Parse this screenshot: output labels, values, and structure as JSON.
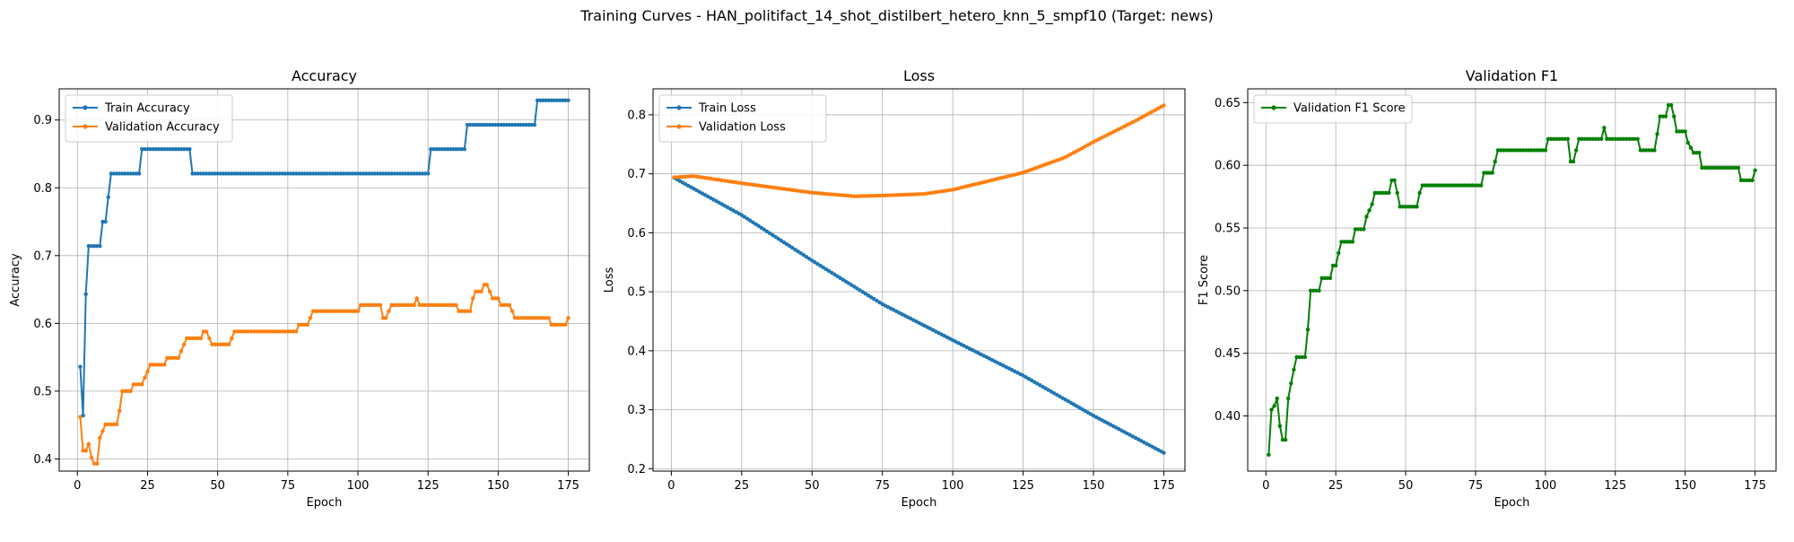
{
  "figure": {
    "suptitle": "Training Curves - HAN_politifact_14_shot_distilbert_hetero_knn_5_smpf10 (Target: news)"
  },
  "colors": {
    "train": "#1f77b4",
    "val": "#ff7f0e",
    "f1": "#008000"
  },
  "chart_data": [
    {
      "type": "line",
      "title": "Accuracy",
      "xlabel": "Epoch",
      "ylabel": "Accuracy",
      "xlim": [
        -6.5,
        182.5
      ],
      "ylim": [
        0.382,
        0.946
      ],
      "xticks": [
        0,
        25,
        50,
        75,
        100,
        125,
        150,
        175
      ],
      "yticks": [
        0.4,
        0.5,
        0.6,
        0.7,
        0.8,
        0.9
      ],
      "ytick_labels": [
        "0.4",
        "0.5",
        "0.6",
        "0.7",
        "0.8",
        "0.9"
      ],
      "grid": true,
      "legend": "upper-left",
      "series": [
        {
          "name": "Train Accuracy",
          "color": "#1f77b4",
          "points": [
            [
              1,
              0.536
            ],
            [
              2,
              0.464
            ],
            [
              3,
              0.643
            ],
            [
              4,
              0.714
            ],
            [
              8,
              0.714
            ],
            [
              9,
              0.75
            ],
            [
              10,
              0.75
            ],
            [
              11,
              0.786
            ],
            [
              12,
              0.821
            ],
            [
              22,
              0.821
            ],
            [
              23,
              0.857
            ],
            [
              40,
              0.857
            ],
            [
              41,
              0.821
            ],
            [
              125,
              0.821
            ],
            [
              126,
              0.857
            ],
            [
              138,
              0.857
            ],
            [
              139,
              0.893
            ],
            [
              163,
              0.893
            ],
            [
              164,
              0.929
            ],
            [
              175,
              0.929
            ]
          ]
        },
        {
          "name": "Validation Accuracy",
          "color": "#ff7f0e",
          "points": [
            [
              1,
              0.462
            ],
            [
              2,
              0.412
            ],
            [
              3,
              0.412
            ],
            [
              4,
              0.422
            ],
            [
              5,
              0.402
            ],
            [
              6,
              0.393
            ],
            [
              7,
              0.393
            ],
            [
              8,
              0.431
            ],
            [
              9,
              0.441
            ],
            [
              10,
              0.451
            ],
            [
              14,
              0.451
            ],
            [
              15,
              0.471
            ],
            [
              16,
              0.5
            ],
            [
              19,
              0.5
            ],
            [
              20,
              0.51
            ],
            [
              23,
              0.51
            ],
            [
              24,
              0.52
            ],
            [
              25,
              0.529
            ],
            [
              26,
              0.539
            ],
            [
              31,
              0.539
            ],
            [
              32,
              0.549
            ],
            [
              36,
              0.549
            ],
            [
              37,
              0.559
            ],
            [
              38,
              0.569
            ],
            [
              39,
              0.578
            ],
            [
              44,
              0.578
            ],
            [
              45,
              0.588
            ],
            [
              46,
              0.588
            ],
            [
              47,
              0.578
            ],
            [
              48,
              0.569
            ],
            [
              54,
              0.569
            ],
            [
              55,
              0.578
            ],
            [
              56,
              0.588
            ],
            [
              78,
              0.588
            ],
            [
              79,
              0.598
            ],
            [
              82,
              0.598
            ],
            [
              83,
              0.608
            ],
            [
              84,
              0.618
            ],
            [
              100,
              0.618
            ],
            [
              101,
              0.627
            ],
            [
              108,
              0.627
            ],
            [
              109,
              0.608
            ],
            [
              110,
              0.608
            ],
            [
              111,
              0.618
            ],
            [
              112,
              0.627
            ],
            [
              120,
              0.627
            ],
            [
              121,
              0.637
            ],
            [
              122,
              0.627
            ],
            [
              135,
              0.627
            ],
            [
              136,
              0.618
            ],
            [
              140,
              0.618
            ],
            [
              141,
              0.637
            ],
            [
              142,
              0.647
            ],
            [
              144,
              0.647
            ],
            [
              145,
              0.657
            ],
            [
              146,
              0.657
            ],
            [
              147,
              0.647
            ],
            [
              148,
              0.637
            ],
            [
              150,
              0.637
            ],
            [
              151,
              0.627
            ],
            [
              154,
              0.627
            ],
            [
              155,
              0.618
            ],
            [
              156,
              0.608
            ],
            [
              168,
              0.608
            ],
            [
              169,
              0.598
            ],
            [
              174,
              0.598
            ],
            [
              175,
              0.608
            ]
          ]
        }
      ]
    },
    {
      "type": "line",
      "title": "Loss",
      "xlabel": "Epoch",
      "ylabel": "Loss",
      "xlim": [
        -6.5,
        182.5
      ],
      "ylim": [
        0.196,
        0.844
      ],
      "xticks": [
        0,
        25,
        50,
        75,
        100,
        125,
        150,
        175
      ],
      "yticks": [
        0.2,
        0.3,
        0.4,
        0.5,
        0.6,
        0.7,
        0.8
      ],
      "ytick_labels": [
        "0.2",
        "0.3",
        "0.4",
        "0.5",
        "0.6",
        "0.7",
        "0.8"
      ],
      "grid": true,
      "legend": "upper-left",
      "series": [
        {
          "name": "Train Loss",
          "color": "#1f77b4",
          "points": [
            [
              1,
              0.693
            ],
            [
              25,
              0.63
            ],
            [
              50,
              0.553
            ],
            [
              75,
              0.479
            ],
            [
              100,
              0.418
            ],
            [
              125,
              0.358
            ],
            [
              150,
              0.29
            ],
            [
              175,
              0.227
            ]
          ]
        },
        {
          "name": "Validation Loss",
          "color": "#ff7f0e",
          "points": [
            [
              1,
              0.694
            ],
            [
              8,
              0.696
            ],
            [
              25,
              0.684
            ],
            [
              50,
              0.668
            ],
            [
              65,
              0.662
            ],
            [
              75,
              0.663
            ],
            [
              90,
              0.666
            ],
            [
              100,
              0.673
            ],
            [
              125,
              0.702
            ],
            [
              140,
              0.728
            ],
            [
              150,
              0.754
            ],
            [
              165,
              0.79
            ],
            [
              175,
              0.816
            ]
          ]
        }
      ]
    },
    {
      "type": "line",
      "title": "Validation F1",
      "xlabel": "Epoch",
      "ylabel": "F1 Score",
      "xlim": [
        -6.5,
        182.5
      ],
      "ylim": [
        0.356,
        0.661
      ],
      "xticks": [
        0,
        25,
        50,
        75,
        100,
        125,
        150,
        175
      ],
      "yticks": [
        0.4,
        0.45,
        0.5,
        0.55,
        0.6,
        0.65
      ],
      "ytick_labels": [
        "0.40",
        "0.45",
        "0.50",
        "0.55",
        "0.60",
        "0.65"
      ],
      "grid": true,
      "legend": "upper-left",
      "series": [
        {
          "name": "Validation F1 Score",
          "color": "#008000",
          "points": [
            [
              1,
              0.369
            ],
            [
              2,
              0.405
            ],
            [
              3,
              0.408
            ],
            [
              4,
              0.414
            ],
            [
              5,
              0.392
            ],
            [
              6,
              0.381
            ],
            [
              7,
              0.381
            ],
            [
              8,
              0.414
            ],
            [
              9,
              0.426
            ],
            [
              10,
              0.437
            ],
            [
              11,
              0.447
            ],
            [
              14,
              0.447
            ],
            [
              15,
              0.469
            ],
            [
              16,
              0.5
            ],
            [
              19,
              0.5
            ],
            [
              20,
              0.51
            ],
            [
              23,
              0.51
            ],
            [
              24,
              0.52
            ],
            [
              25,
              0.52
            ],
            [
              26,
              0.53
            ],
            [
              27,
              0.539
            ],
            [
              31,
              0.539
            ],
            [
              32,
              0.549
            ],
            [
              35,
              0.549
            ],
            [
              36,
              0.559
            ],
            [
              38,
              0.569
            ],
            [
              39,
              0.578
            ],
            [
              44,
              0.578
            ],
            [
              45,
              0.588
            ],
            [
              46,
              0.588
            ],
            [
              47,
              0.578
            ],
            [
              48,
              0.567
            ],
            [
              54,
              0.567
            ],
            [
              55,
              0.578
            ],
            [
              56,
              0.584
            ],
            [
              77,
              0.584
            ],
            [
              78,
              0.594
            ],
            [
              81,
              0.594
            ],
            [
              82,
              0.603
            ],
            [
              83,
              0.612
            ],
            [
              100,
              0.612
            ],
            [
              101,
              0.621
            ],
            [
              108,
              0.621
            ],
            [
              109,
              0.603
            ],
            [
              110,
              0.603
            ],
            [
              111,
              0.612
            ],
            [
              112,
              0.621
            ],
            [
              120,
              0.621
            ],
            [
              121,
              0.63
            ],
            [
              122,
              0.621
            ],
            [
              133,
              0.621
            ],
            [
              134,
              0.612
            ],
            [
              139,
              0.612
            ],
            [
              140,
              0.625
            ],
            [
              141,
              0.639
            ],
            [
              143,
              0.639
            ],
            [
              144,
              0.648
            ],
            [
              145,
              0.648
            ],
            [
              146,
              0.639
            ],
            [
              147,
              0.627
            ],
            [
              150,
              0.627
            ],
            [
              151,
              0.618
            ],
            [
              153,
              0.61
            ],
            [
              155,
              0.61
            ],
            [
              156,
              0.598
            ],
            [
              169,
              0.598
            ],
            [
              170,
              0.588
            ],
            [
              174,
              0.588
            ],
            [
              175,
              0.596
            ]
          ]
        }
      ]
    }
  ]
}
